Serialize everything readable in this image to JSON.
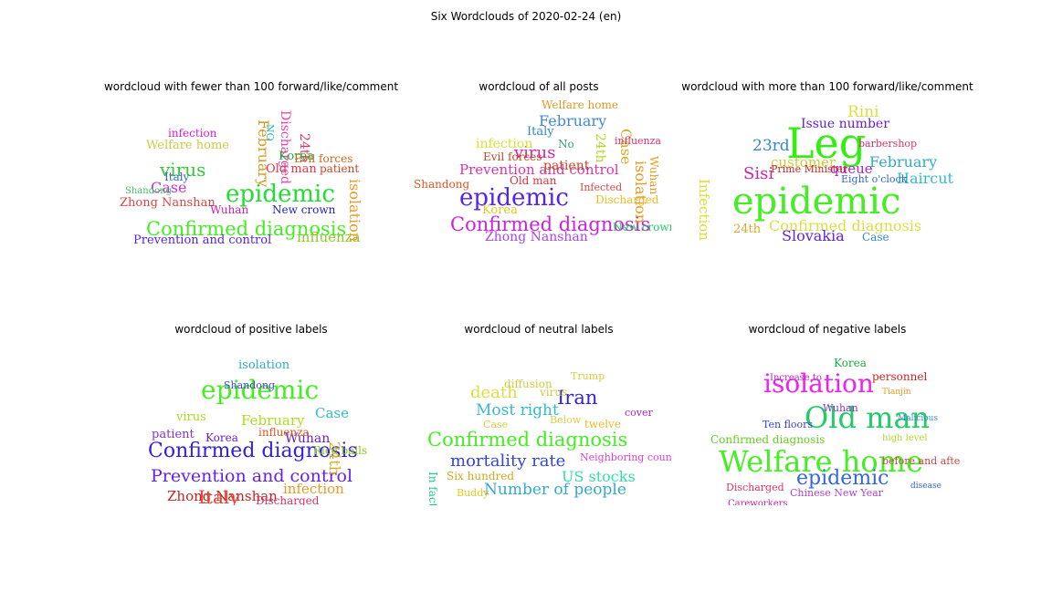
{
  "figure_title": "Six Wordclouds of 2020-02-24 (en)",
  "panels": [
    {
      "title": "wordcloud with fewer than 100 forward/like/comment",
      "words": [
        {
          "text": "Confirmed diagnosis",
          "color": "#44ee22"
        },
        {
          "text": "epidemic",
          "color": "#22dd33"
        },
        {
          "text": "virus",
          "color": "#33cc33"
        },
        {
          "text": "Welfare home",
          "color": "#cccc44"
        },
        {
          "text": "Case",
          "color": "#cc33cc"
        },
        {
          "text": "Zhong Nanshan",
          "color": "#dd4444"
        },
        {
          "text": "infection",
          "color": "#cc22cc"
        },
        {
          "text": "Prevention and control",
          "color": "#5522ee"
        },
        {
          "text": "New crown",
          "color": "#2222cc"
        },
        {
          "text": "influenza",
          "color": "#88cc22"
        },
        {
          "text": "February",
          "color": "#dd9922"
        },
        {
          "text": "Discharged",
          "color": "#ee44aa"
        },
        {
          "text": "isolation",
          "color": "#ee9922"
        },
        {
          "text": "24th",
          "color": "#dd3366"
        },
        {
          "text": "Old man",
          "color": "#ee3344"
        },
        {
          "text": "Korea",
          "color": "#22aa44"
        },
        {
          "text": "Evil forces",
          "color": "#cc6622"
        },
        {
          "text": "patient",
          "color": "#cc4422"
        },
        {
          "text": "Wuhan",
          "color": "#cc22aa"
        },
        {
          "text": "Italy",
          "color": "#3366cc"
        },
        {
          "text": "Shandong",
          "color": "#44bb66"
        },
        {
          "text": "NO",
          "color": "#22bbcc"
        }
      ]
    },
    {
      "title": "wordcloud of all posts",
      "words": [
        {
          "text": "Confirmed diagnosis",
          "color": "#cc22dd"
        },
        {
          "text": "epidemic",
          "color": "#5522ee"
        },
        {
          "text": "Prevention and control",
          "color": "#dd33aa"
        },
        {
          "text": "virus",
          "color": "#dd22aa"
        },
        {
          "text": "February",
          "color": "#4488dd"
        },
        {
          "text": "Welfare home",
          "color": "#dd9922"
        },
        {
          "text": "infection",
          "color": "#dddd33"
        },
        {
          "text": "Zhong Nanshan",
          "color": "#aa44ee"
        },
        {
          "text": "Korea",
          "color": "#ddcc22"
        },
        {
          "text": "Old man",
          "color": "#dd3344"
        },
        {
          "text": "Evil forces",
          "color": "#cc4422"
        },
        {
          "text": "patient",
          "color": "#cc4422"
        },
        {
          "text": "Italy",
          "color": "#3388cc"
        },
        {
          "text": "Shandong",
          "color": "#dd5522"
        },
        {
          "text": "isolation",
          "color": "#ee9922"
        },
        {
          "text": "Case",
          "color": "#ddaa22"
        },
        {
          "text": "24th",
          "color": "#aadd22"
        },
        {
          "text": "Wuhan",
          "color": "#ee9922"
        },
        {
          "text": "Discharged",
          "color": "#eebb22"
        },
        {
          "text": "New crown",
          "color": "#22cc66"
        },
        {
          "text": "Infected",
          "color": "#dd4444"
        },
        {
          "text": "influenza",
          "color": "#dd3366"
        },
        {
          "text": "No",
          "color": "#33aa66"
        },
        {
          "text": "23rd",
          "color": "#dd4466"
        }
      ]
    },
    {
      "title": "wordcloud with more than 100 forward/like/comment",
      "words": [
        {
          "text": "epidemic",
          "color": "#44ee22"
        },
        {
          "text": "Leg",
          "color": "#33ee11"
        },
        {
          "text": "Confirmed diagnosis",
          "color": "#dddd44"
        },
        {
          "text": "Rini",
          "color": "#dddd44"
        },
        {
          "text": "Issue number",
          "color": "#6622cc"
        },
        {
          "text": "23rd",
          "color": "#3388cc"
        },
        {
          "text": "customer",
          "color": "#cccc33"
        },
        {
          "text": "queue",
          "color": "#aa22cc"
        },
        {
          "text": "February",
          "color": "#33aacc"
        },
        {
          "text": "Sisi",
          "color": "#cc22aa"
        },
        {
          "text": "Haircut",
          "color": "#33bbcc"
        },
        {
          "text": "Slovakia",
          "color": "#6622dd"
        },
        {
          "text": "Case",
          "color": "#3388cc"
        },
        {
          "text": "24th",
          "color": "#ddaa22"
        },
        {
          "text": "Infection",
          "color": "#dddd33"
        },
        {
          "text": "Prime Minister",
          "color": "#cc2222"
        },
        {
          "text": "Eight o'clock",
          "color": "#3366cc"
        },
        {
          "text": "barbershop",
          "color": "#dd3366"
        }
      ]
    },
    {
      "title": "wordcloud of positive labels",
      "words": [
        {
          "text": "Confirmed diagnosis",
          "color": "#3322dd"
        },
        {
          "text": "Prevention and control",
          "color": "#6622dd"
        },
        {
          "text": "epidemic",
          "color": "#44ee22"
        },
        {
          "text": "February",
          "color": "#aadd22"
        },
        {
          "text": "virus",
          "color": "#aadd22"
        },
        {
          "text": "patient",
          "color": "#8833cc"
        },
        {
          "text": "Zhong Nanshan",
          "color": "#cc2222"
        },
        {
          "text": "Italy",
          "color": "#ee4433"
        },
        {
          "text": "Case",
          "color": "#33bbcc"
        },
        {
          "text": "Wuhan",
          "color": "#6622cc"
        },
        {
          "text": "Korea",
          "color": "#6622cc"
        },
        {
          "text": "isolation",
          "color": "#33aacc"
        },
        {
          "text": "infection",
          "color": "#ee9922"
        },
        {
          "text": "Discharged",
          "color": "#dd3366"
        },
        {
          "text": "24th",
          "color": "#ddaa22"
        },
        {
          "text": "influenza",
          "color": "#dd5522"
        },
        {
          "text": "Rice balls",
          "color": "#88cc22"
        },
        {
          "text": "Shandong",
          "color": "#4444dd"
        }
      ]
    },
    {
      "title": "wordcloud of neutral labels",
      "words": [
        {
          "text": "Confirmed diagnosis",
          "color": "#44ee22"
        },
        {
          "text": "Iran",
          "color": "#3322dd"
        },
        {
          "text": "mortality rate",
          "color": "#3344dd"
        },
        {
          "text": "Most right",
          "color": "#33bbcc"
        },
        {
          "text": "death",
          "color": "#dddd44"
        },
        {
          "text": "Number of people",
          "color": "#33aacc"
        },
        {
          "text": "US stocks",
          "color": "#33ddaa"
        },
        {
          "text": "Neighboring countries",
          "color": "#dd44cc"
        },
        {
          "text": "diffusion",
          "color": "#cccc44"
        },
        {
          "text": "Trump",
          "color": "#ddcc44"
        },
        {
          "text": "twelve",
          "color": "#eebb22"
        },
        {
          "text": "Below",
          "color": "#ddcc44"
        },
        {
          "text": "cover",
          "color": "#aa22cc"
        },
        {
          "text": "Case",
          "color": "#ddcc44"
        },
        {
          "text": "Six hundred",
          "color": "#ccaa22"
        },
        {
          "text": "Buddy",
          "color": "#ddcc22"
        },
        {
          "text": "virus",
          "color": "#cccc44"
        },
        {
          "text": "In fact",
          "color": "#22cc88"
        }
      ]
    },
    {
      "title": "wordcloud of negative labels",
      "words": [
        {
          "text": "Welfare home",
          "color": "#44ee22"
        },
        {
          "text": "Old man",
          "color": "#22cc66"
        },
        {
          "text": "isolation",
          "color": "#ee22ee"
        },
        {
          "text": "epidemic",
          "color": "#3366dd"
        },
        {
          "text": "Confirmed diagnosis",
          "color": "#66cc22"
        },
        {
          "text": "Ten floors",
          "color": "#3344cc"
        },
        {
          "text": "Discharged",
          "color": "#dd3366"
        },
        {
          "text": "Careworkers",
          "color": "#cc22aa"
        },
        {
          "text": "Chinese New Year",
          "color": "#aa44cc"
        },
        {
          "text": "Korea",
          "color": "#22aa44"
        },
        {
          "text": "Wuhan",
          "color": "#8833cc"
        },
        {
          "text": "high level",
          "color": "#aadd22"
        },
        {
          "text": "Malicious",
          "color": "#3388cc"
        },
        {
          "text": "disease",
          "color": "#3366cc"
        },
        {
          "text": "personnel",
          "color": "#cc2222"
        },
        {
          "text": "before and after Six",
          "color": "#cc4444"
        },
        {
          "text": "Increase to",
          "color": "#cc22cc"
        },
        {
          "text": "Tianjin",
          "color": "#ee9922"
        }
      ]
    }
  ]
}
